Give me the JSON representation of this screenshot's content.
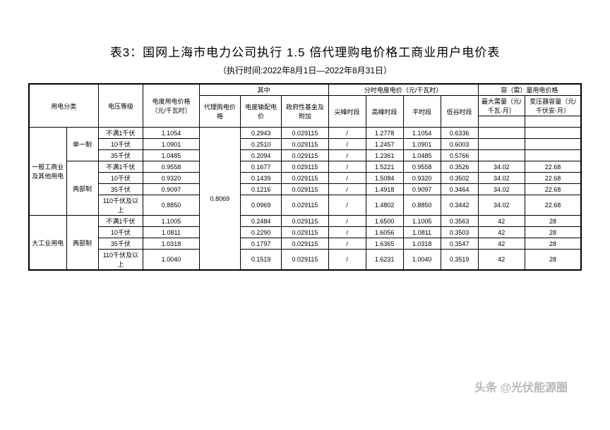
{
  "title": "表3：国网上海市电力公司执行 1.5 倍代理购电价格工商业用户电价表",
  "subtitle": "（执行时间:2022年8月1日—2022年8月31日）",
  "headers": {
    "col_category": "用电分类",
    "col_voltage": "电压等级",
    "col_energy_price": "电度用电价格（元/千瓦时）",
    "group_middle": "其中",
    "col_proxy_price": "代理购电价格",
    "col_transmission": "电度输配电价",
    "col_gov_fund": "政府性基金及附加",
    "group_tou": "分时电度电价（元/千瓦时）",
    "col_peak": "尖峰时段",
    "col_high": "高峰时段",
    "col_flat": "平时段",
    "col_valley": "低谷时段",
    "group_capacity": "容（需）量用电价格",
    "col_max_demand": "最大需量（元/千瓦·月）",
    "col_transformer": "变压器容量（元/千伏安·月）"
  },
  "groups": [
    {
      "cat_a": "一般工商业及其他用电",
      "subgroups": [
        {
          "cat_b": "单一制",
          "rows": [
            {
              "voltage": "不满1千伏",
              "energy": "1.1054",
              "proxy": "",
              "trans": "0.2943",
              "gov": "0.029115",
              "peak": "/",
              "high": "1.2778",
              "flat": "1.1054",
              "valley": "0.6336",
              "max": "",
              "xform": ""
            },
            {
              "voltage": "10千伏",
              "energy": "1.0901",
              "proxy": "",
              "trans": "0.2510",
              "gov": "0.029115",
              "peak": "/",
              "high": "1.2457",
              "flat": "1.0901",
              "valley": "0.6003",
              "max": "",
              "xform": ""
            },
            {
              "voltage": "35千伏",
              "energy": "1.0485",
              "proxy": "",
              "trans": "0.2094",
              "gov": "0.029115",
              "peak": "/",
              "high": "1.2361",
              "flat": "1.0485",
              "valley": "0.5766",
              "max": "",
              "xform": ""
            }
          ]
        },
        {
          "cat_b": "两部制",
          "rows": [
            {
              "voltage": "不满1千伏",
              "energy": "0.9558",
              "proxy": "",
              "trans": "0.1677",
              "gov": "0.029115",
              "peak": "/",
              "high": "1.5221",
              "flat": "0.9558",
              "valley": "0.3526",
              "max": "34.02",
              "xform": "22.68"
            },
            {
              "voltage": "10千伏",
              "energy": "0.9320",
              "proxy": "",
              "trans": "0.1439",
              "gov": "0.029115",
              "peak": "/",
              "high": "1.5084",
              "flat": "0.9320",
              "valley": "0.3502",
              "max": "34.02",
              "xform": "22.68"
            },
            {
              "voltage": "35千伏",
              "energy": "0.9097",
              "proxy": "0.8069",
              "trans": "0.1216",
              "gov": "0.029115",
              "peak": "/",
              "high": "1.4918",
              "flat": "0.9097",
              "valley": "0.3464",
              "max": "34.02",
              "xform": "22.68"
            },
            {
              "voltage": "110千伏及以上",
              "energy": "0.8850",
              "proxy": "",
              "trans": "0.0969",
              "gov": "0.029115",
              "peak": "/",
              "high": "1.4802",
              "flat": "0.8850",
              "valley": "0.3442",
              "max": "34.02",
              "xform": "22.68"
            }
          ]
        }
      ]
    },
    {
      "cat_a": "大工业用电",
      "subgroups": [
        {
          "cat_b": "两部制",
          "rows": [
            {
              "voltage": "不满1千伏",
              "energy": "1.1005",
              "proxy": "",
              "trans": "0.2484",
              "gov": "0.029115",
              "peak": "/",
              "high": "1.6500",
              "flat": "1.1005",
              "valley": "0.3563",
              "max": "42",
              "xform": "28"
            },
            {
              "voltage": "10千伏",
              "energy": "1.0811",
              "proxy": "",
              "trans": "0.2290",
              "gov": "0.029115",
              "peak": "/",
              "high": "1.6056",
              "flat": "1.0811",
              "valley": "0.3503",
              "max": "42",
              "xform": "28"
            },
            {
              "voltage": "35千伏",
              "energy": "1.0318",
              "proxy": "",
              "trans": "0.1797",
              "gov": "0.029115",
              "peak": "/",
              "high": "1.6365",
              "flat": "1.0318",
              "valley": "0.3547",
              "max": "42",
              "xform": "28"
            },
            {
              "voltage": "110千伏及以上",
              "energy": "1.0040",
              "proxy": "",
              "trans": "0.1519",
              "gov": "0.029115",
              "peak": "/",
              "high": "1.6231",
              "flat": "1.0040",
              "valley": "0.3519",
              "max": "42",
              "xform": "28"
            }
          ]
        }
      ]
    }
  ],
  "watermark": "头条 @光伏能源圈",
  "style": {
    "title_color": "#000000",
    "border_color": "#000000",
    "bg": "#ffffff",
    "font_size_body": 9,
    "font_size_title": 17
  }
}
